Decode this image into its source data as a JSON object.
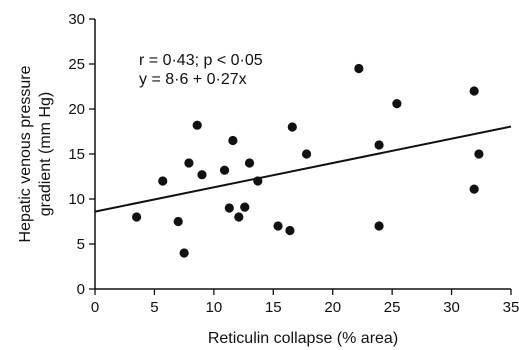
{
  "chart_data": {
    "type": "scatter",
    "title": "",
    "xlabel": "Reticulin collapse (% area)",
    "ylabel_lines": [
      "Hepatic venous pressure",
      "gradient (mm Hg)"
    ],
    "xlim": [
      0,
      35
    ],
    "ylim": [
      0,
      30
    ],
    "x_ticks": [
      0,
      5,
      10,
      15,
      20,
      25,
      30,
      35
    ],
    "y_ticks": [
      0,
      5,
      10,
      15,
      20,
      25,
      30
    ],
    "grid": false,
    "points": [
      {
        "x": 3.5,
        "y": 8
      },
      {
        "x": 5.7,
        "y": 12
      },
      {
        "x": 7.0,
        "y": 7.5
      },
      {
        "x": 7.5,
        "y": 4
      },
      {
        "x": 7.9,
        "y": 14
      },
      {
        "x": 8.6,
        "y": 18.2
      },
      {
        "x": 9.0,
        "y": 12.7
      },
      {
        "x": 10.9,
        "y": 13.2
      },
      {
        "x": 11.3,
        "y": 9
      },
      {
        "x": 11.6,
        "y": 16.5
      },
      {
        "x": 12.1,
        "y": 8
      },
      {
        "x": 12.6,
        "y": 9.1
      },
      {
        "x": 13.0,
        "y": 14
      },
      {
        "x": 13.7,
        "y": 12
      },
      {
        "x": 15.4,
        "y": 7
      },
      {
        "x": 16.4,
        "y": 6.5
      },
      {
        "x": 16.6,
        "y": 18
      },
      {
        "x": 17.8,
        "y": 15
      },
      {
        "x": 22.2,
        "y": 24.5
      },
      {
        "x": 23.9,
        "y": 16
      },
      {
        "x": 23.9,
        "y": 7
      },
      {
        "x": 25.4,
        "y": 20.6
      },
      {
        "x": 31.9,
        "y": 22
      },
      {
        "x": 31.9,
        "y": 11.1
      },
      {
        "x": 32.3,
        "y": 15
      }
    ],
    "regression": {
      "intercept": 8.6,
      "slope": 0.27
    },
    "annotations": [
      "r = 0·43; p < 0·05",
      "y = 8·6 + 0·27x"
    ]
  }
}
